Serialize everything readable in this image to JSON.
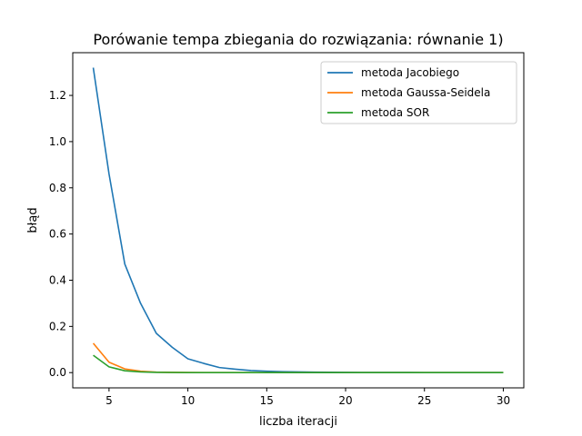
{
  "chart_data": {
    "type": "line",
    "title": "Porówanie tempa zbiegania do rozwiązania: równanie 1)",
    "xlabel": "liczba iteracji",
    "ylabel": "błąd",
    "xlim": [
      2.7,
      31.3
    ],
    "ylim": [
      -0.066,
      1.385
    ],
    "xticks": [
      5,
      10,
      15,
      20,
      25,
      30
    ],
    "yticks": [
      0.0,
      0.2,
      0.4,
      0.6,
      0.8,
      1.0,
      1.2
    ],
    "ytick_labels": [
      "0.0",
      "0.2",
      "0.4",
      "0.6",
      "0.8",
      "1.0",
      "1.2"
    ],
    "grid": false,
    "legend_position": "top-right",
    "x": [
      4,
      5,
      6,
      7,
      8,
      9,
      10,
      11,
      12,
      13,
      14,
      15,
      16,
      17,
      18,
      19,
      20,
      21,
      22,
      23,
      24,
      25,
      26,
      27,
      28,
      29,
      30
    ],
    "series": [
      {
        "name": "metoda Jacobiego",
        "color": "#1f77b4",
        "values": [
          1.32,
          0.86,
          0.47,
          0.3,
          0.17,
          0.11,
          0.06,
          0.04,
          0.022,
          0.015,
          0.009,
          0.006,
          0.004,
          0.003,
          0.002,
          0.0015,
          0.001,
          0.0008,
          0.0006,
          0.0005,
          0.0004,
          0.0003,
          0.0002,
          0.0002,
          0.0001,
          0.0001,
          0.0001
        ]
      },
      {
        "name": "metoda Gaussa-Seidela",
        "color": "#ff7f0e",
        "values": [
          0.127,
          0.045,
          0.016,
          0.006,
          0.002,
          0.001,
          0.0005,
          0.0002,
          0.0001,
          0,
          0,
          0,
          0,
          0,
          0,
          0,
          0,
          0,
          0,
          0,
          0,
          0,
          0,
          0,
          0,
          0,
          0
        ]
      },
      {
        "name": "metoda SOR",
        "color": "#2ca02c",
        "values": [
          0.075,
          0.025,
          0.008,
          0.003,
          0.001,
          0.0005,
          0.0002,
          0.0001,
          0,
          0,
          0,
          0,
          0,
          0,
          0,
          0,
          0,
          0,
          0,
          0,
          0,
          0,
          0,
          0,
          0,
          0,
          0
        ]
      }
    ]
  }
}
